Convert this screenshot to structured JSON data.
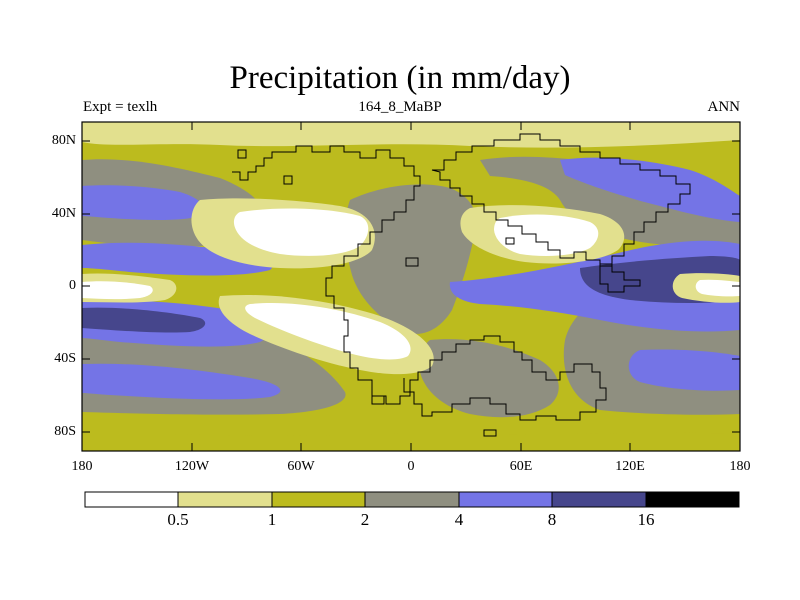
{
  "title": "Precipitation (in mm/day)",
  "subtitle_left": "Expt = texlh",
  "subtitle_center": "164_8_MaBP",
  "subtitle_right": "ANN",
  "lat_labels": [
    "80N",
    "40N",
    "0",
    "40S",
    "80S"
  ],
  "lon_labels": [
    "180",
    "120W",
    "60W",
    "0",
    "60E",
    "120E",
    "180"
  ],
  "colorbar": {
    "boundaries": [
      "0.5",
      "1",
      "2",
      "4",
      "8",
      "16"
    ],
    "colors": [
      "#ffffff",
      "#e2e08e",
      "#bcbb1e",
      "#8f8f80",
      "#7474e6",
      "#46468c",
      "#000000"
    ]
  },
  "colors": {
    "very_dry": "#ffffff",
    "dry": "#e2e08e",
    "low": "#bcbb1e",
    "medium": "#8f8f80",
    "wet": "#7474e6",
    "very_wet": "#46468c",
    "extreme": "#000000"
  }
}
